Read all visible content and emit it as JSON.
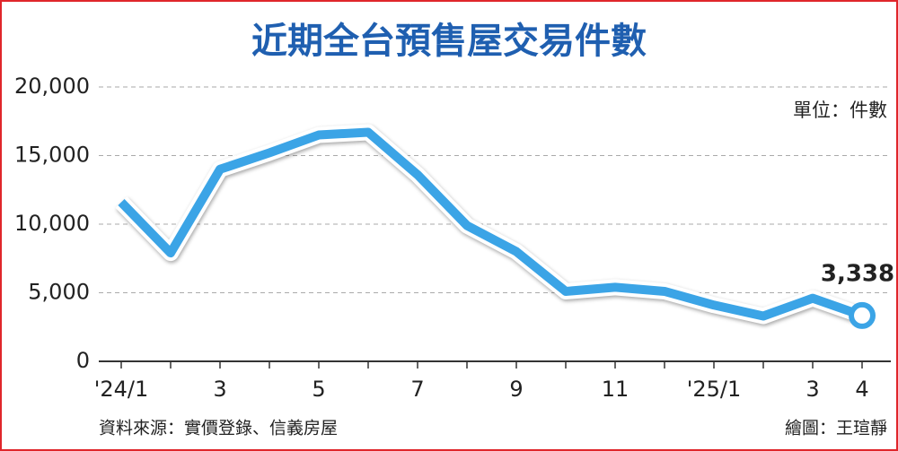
{
  "chart_data": {
    "type": "line",
    "title": "近期全台預售屋交易件數",
    "unit_note": "單位：件數",
    "source": "資料來源：實價登錄、信義房屋",
    "credit": "繪圖：王瑄靜",
    "categories": [
      "'24/1",
      null,
      "3",
      null,
      "5",
      null,
      "7",
      null,
      "9",
      null,
      "11",
      null,
      "'25/1",
      null,
      "3",
      "4"
    ],
    "values": [
      11600,
      7900,
      14000,
      15200,
      16500,
      16700,
      13600,
      9900,
      8000,
      5100,
      5400,
      5100,
      4100,
      3300,
      4600,
      3338
    ],
    "value_labels": [
      null,
      null,
      null,
      null,
      null,
      null,
      null,
      null,
      null,
      null,
      null,
      null,
      null,
      null,
      null,
      "3,338"
    ],
    "color": "#3ba4e6",
    "ylim": [
      0,
      20000
    ],
    "yticks": [
      0,
      {
        "value": 5000,
        "label": "5,000"
      },
      {
        "value": 10000,
        "label": "10,000"
      },
      {
        "value": 15000,
        "label": "15,000"
      },
      {
        "value": 20000,
        "label": "20,000"
      }
    ],
    "grid": true
  }
}
